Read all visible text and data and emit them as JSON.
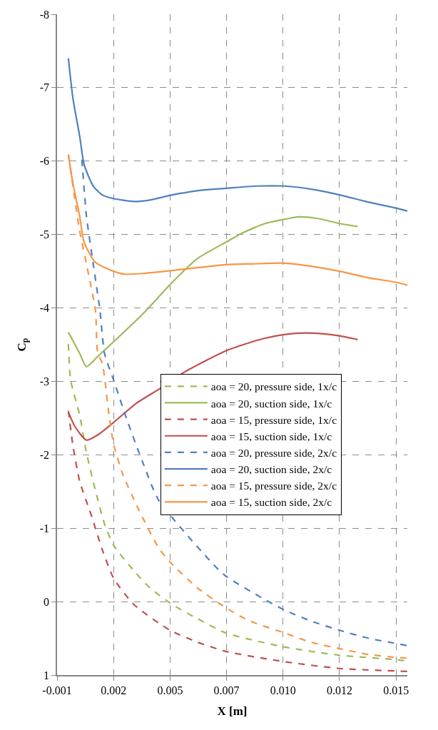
{
  "chart_data": {
    "type": "line",
    "xlabel": "X [m]",
    "ylabel": "C$_{p}$",
    "xlim": [
      -0.0005,
      0.015
    ],
    "xticks": [
      {
        "value": -0.0005,
        "label": "-0.001"
      },
      0.002,
      {
        "value": 0.0045,
        "label": "0.005"
      },
      0.007,
      {
        "value": 0.0095,
        "label": "0.010"
      },
      0.012,
      {
        "value": 0.0145,
        "label": "0.015"
      }
    ],
    "ylim": [
      1,
      -8
    ],
    "yticks": [
      -8,
      -7,
      -6,
      -5,
      -4,
      -3,
      -2,
      -1,
      0,
      1
    ],
    "grid": true,
    "legend": "right",
    "marker": "none",
    "series": [
      {
        "name": "aoa = 20, pressure side, 1x/c",
        "color": "#9bbb59",
        "line_style": "dashed",
        "x": [
          0.0,
          0.0001,
          0.0005,
          0.0008,
          0.0012,
          0.0016,
          0.002,
          0.0029,
          0.0036,
          0.0046,
          0.0057,
          0.007,
          0.0096,
          0.012,
          0.0145,
          0.015
        ],
        "values": [
          -3.51,
          -3.02,
          -2.54,
          -2.03,
          -1.51,
          -1.06,
          -0.77,
          -0.42,
          -0.19,
          0.04,
          0.23,
          0.43,
          0.62,
          0.73,
          0.79,
          0.81
        ]
      },
      {
        "name": "aoa = 20, suction side, 1x/c",
        "color": "#9bbb59",
        "line_style": "solid",
        "x": [
          0.0,
          0.0005,
          0.0008,
          0.0013,
          0.0019,
          0.0033,
          0.0046,
          0.0057,
          0.007,
          0.0077,
          0.0087,
          0.0096,
          0.0102,
          0.011,
          0.012,
          0.0128
        ],
        "values": [
          -3.67,
          -3.38,
          -3.2,
          -3.34,
          -3.51,
          -3.92,
          -4.35,
          -4.67,
          -4.9,
          -5.02,
          -5.15,
          -5.21,
          -5.24,
          -5.22,
          -5.15,
          -5.11
        ]
      },
      {
        "name": "aoa = 15, pressure side, 1x/c",
        "color": "#c0504d",
        "line_style": "dashed",
        "x": [
          0.0,
          0.0002,
          0.0005,
          0.001,
          0.0015,
          0.002,
          0.0029,
          0.0045,
          0.0057,
          0.007,
          0.0096,
          0.012,
          0.015
        ],
        "values": [
          -2.6,
          -2.13,
          -1.64,
          -1.19,
          -0.71,
          -0.32,
          0.04,
          0.39,
          0.55,
          0.68,
          0.82,
          0.91,
          0.95
        ]
      },
      {
        "name": "aoa = 15, suction side, 1x/c",
        "color": "#c0504d",
        "line_style": "solid",
        "x": [
          0.0,
          0.0003,
          0.0008,
          0.0013,
          0.002,
          0.003,
          0.0041,
          0.0051,
          0.007,
          0.0086,
          0.0096,
          0.0105,
          0.0112,
          0.012,
          0.0128
        ],
        "values": [
          -2.58,
          -2.38,
          -2.2,
          -2.27,
          -2.44,
          -2.7,
          -2.91,
          -3.12,
          -3.42,
          -3.58,
          -3.64,
          -3.66,
          -3.65,
          -3.62,
          -3.57
        ]
      },
      {
        "name": "aoa = 20, pressure side, 2x/c",
        "color": "#4f81bd",
        "line_style": "dashed",
        "x": [
          0.0006,
          0.0008,
          0.0011,
          0.0014,
          0.0016,
          0.002,
          0.0026,
          0.0033,
          0.004,
          0.0065,
          0.007,
          0.0088,
          0.0096,
          0.0107,
          0.012,
          0.0133,
          0.0145,
          0.015
        ],
        "values": [
          -6.02,
          -5.25,
          -4.6,
          -3.96,
          -3.38,
          -3.02,
          -2.47,
          -1.89,
          -1.38,
          -0.48,
          -0.34,
          -0.01,
          0.12,
          0.26,
          0.39,
          0.5,
          0.57,
          0.6
        ]
      },
      {
        "name": "aoa = 20, suction side, 2x/c",
        "color": "#4f81bd",
        "line_style": "solid",
        "x": [
          0.0,
          0.0002,
          0.0005,
          0.0007,
          0.0011,
          0.0015,
          0.002,
          0.0029,
          0.0036,
          0.0046,
          0.0058,
          0.007,
          0.0083,
          0.0096,
          0.0109,
          0.012,
          0.0133,
          0.0145,
          0.015
        ],
        "values": [
          -7.4,
          -6.86,
          -6.34,
          -5.95,
          -5.66,
          -5.54,
          -5.49,
          -5.45,
          -5.47,
          -5.54,
          -5.6,
          -5.63,
          -5.66,
          -5.66,
          -5.61,
          -5.54,
          -5.44,
          -5.36,
          -5.32
        ]
      },
      {
        "name": "aoa = 15, pressure side, 2x/c",
        "color": "#f79646",
        "line_style": "dashed",
        "x": [
          0.0,
          0.0005,
          0.0008,
          0.0012,
          0.0013,
          0.0015,
          0.0018,
          0.002,
          0.0024,
          0.0031,
          0.004,
          0.0045,
          0.0057,
          0.007,
          0.008,
          0.0096,
          0.0107,
          0.012,
          0.0133,
          0.0145,
          0.015
        ],
        "values": [
          -6.09,
          -5.05,
          -4.6,
          -3.96,
          -3.38,
          -3.25,
          -2.54,
          -2.15,
          -1.74,
          -1.26,
          -0.73,
          -0.54,
          -0.19,
          0.09,
          0.26,
          0.43,
          0.55,
          0.64,
          0.72,
          0.76,
          0.77
        ]
      },
      {
        "name": "aoa = 15, suction side, 2x/c",
        "color": "#f79646",
        "line_style": "solid",
        "x": [
          0.0,
          0.0002,
          0.0005,
          0.0007,
          0.0012,
          0.002,
          0.0025,
          0.0033,
          0.0046,
          0.007,
          0.0081,
          0.0096,
          0.0107,
          0.012,
          0.0133,
          0.0145,
          0.015
        ],
        "values": [
          -6.09,
          -5.7,
          -5.25,
          -4.89,
          -4.62,
          -4.5,
          -4.46,
          -4.47,
          -4.51,
          -4.59,
          -4.6,
          -4.61,
          -4.57,
          -4.5,
          -4.41,
          -4.35,
          -4.31
        ]
      }
    ]
  }
}
